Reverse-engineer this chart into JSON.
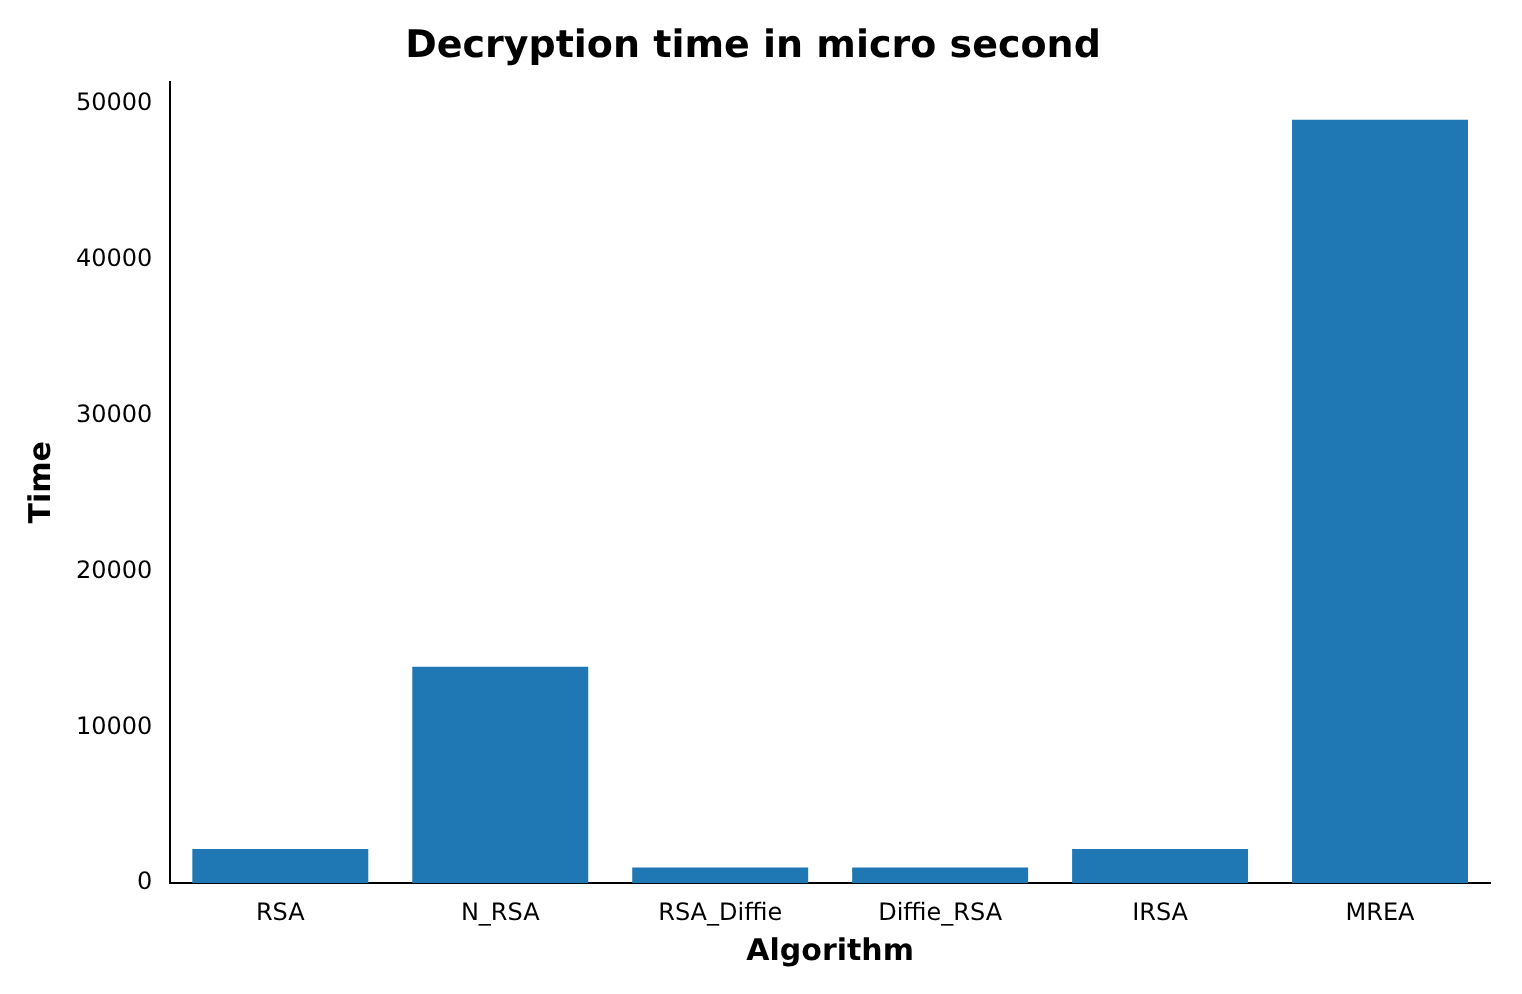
{
  "chart_data": {
    "type": "bar",
    "title": "Decryption time in micro second",
    "xlabel": "Algorithm",
    "ylabel": "Time",
    "categories": [
      "RSA",
      "N_RSA",
      "RSA_Diffie",
      "Diffie_RSA",
      "IRSA",
      "MREA"
    ],
    "values": [
      2200,
      13900,
      1000,
      1000,
      2200,
      49000
    ],
    "color": "#1f77b4",
    "ylim": [
      0,
      51450
    ],
    "yticks": [
      0,
      10000,
      20000,
      30000,
      40000,
      50000
    ],
    "grid": false,
    "legend": false
  }
}
